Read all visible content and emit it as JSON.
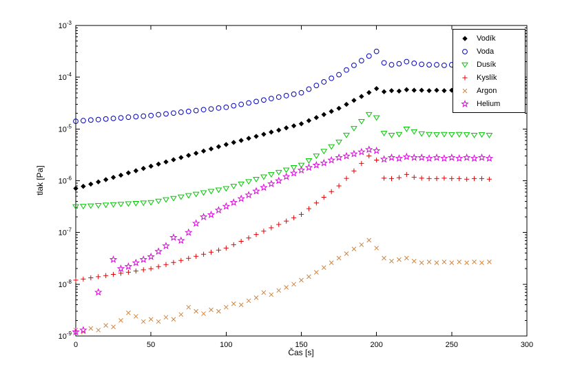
{
  "chart_data": {
    "type": "scatter",
    "title": "",
    "xlabel": "Čas [s]",
    "ylabel": "tlak [Pa]",
    "xlim": [
      0,
      300
    ],
    "ylog": true,
    "ylim_exp": [
      -9,
      -3
    ],
    "xticks": [
      0,
      50,
      100,
      150,
      200,
      250,
      300
    ],
    "ytick_exponents": [
      -9,
      -8,
      -7,
      -6,
      -5,
      -4,
      -3
    ],
    "grid": false,
    "legend_position": "top-right",
    "x": [
      0,
      5,
      10,
      15,
      20,
      25,
      30,
      35,
      40,
      45,
      50,
      55,
      60,
      65,
      70,
      75,
      80,
      85,
      90,
      95,
      100,
      105,
      110,
      115,
      120,
      125,
      130,
      135,
      140,
      145,
      150,
      155,
      160,
      165,
      170,
      175,
      180,
      185,
      190,
      195,
      200,
      205,
      210,
      215,
      220,
      225,
      230,
      235,
      240,
      245,
      250,
      255,
      260,
      265,
      270,
      275
    ],
    "series": [
      {
        "name": "Vodík",
        "marker": "diamond",
        "color": "#000000",
        "filled": true,
        "values": [
          7.1e-07,
          7.8e-07,
          8.6e-07,
          9.5e-07,
          1.05e-06,
          1.16e-06,
          1.28e-06,
          1.42e-06,
          1.56e-06,
          1.73e-06,
          1.91e-06,
          2.1e-06,
          2.31e-06,
          2.55e-06,
          2.81e-06,
          3.09e-06,
          3.4e-06,
          3.75e-06,
          4.13e-06,
          4.55e-06,
          5.01e-06,
          5.5e-06,
          6e-06,
          6.6e-06,
          7.2e-06,
          7.9e-06,
          8.7e-06,
          9.5e-06,
          1.05e-05,
          1.15e-05,
          1.26e-05,
          1.45e-05,
          1.66e-05,
          1.9e-05,
          2.19e-05,
          2.51e-05,
          2.99e-05,
          3.57e-05,
          4.25e-05,
          5.06e-05,
          6.03e-05,
          5.25e-05,
          5.5e-05,
          5.4e-05,
          5.75e-05,
          5.6e-05,
          5.6e-05,
          5.5e-05,
          5.6e-05,
          5.5e-05,
          5.6e-05,
          5.5e-05,
          5.6e-05,
          5.5e-05,
          5.6e-05,
          5.5e-05
        ]
      },
      {
        "name": "Voda",
        "marker": "circle",
        "color": "#0000bf",
        "filled": false,
        "values": [
          1.41e-05,
          1.45e-05,
          1.49e-05,
          1.52e-05,
          1.56e-05,
          1.6e-05,
          1.64e-05,
          1.69e-05,
          1.73e-05,
          1.77e-05,
          1.82e-05,
          1.89e-05,
          1.96e-05,
          2.03e-05,
          2.11e-05,
          2.19e-05,
          2.27e-05,
          2.36e-05,
          2.44e-05,
          2.54e-05,
          2.63e-05,
          2.81e-05,
          2.99e-05,
          3.19e-05,
          3.4e-05,
          3.63e-05,
          3.87e-05,
          4.13e-05,
          4.41e-05,
          4.7e-05,
          5.01e-05,
          5.89e-05,
          6.92e-05,
          8.13e-05,
          9.55e-05,
          0.000112,
          0.000138,
          0.00017,
          0.000209,
          0.000257,
          0.000316,
          0.00019,
          0.000174,
          0.000182,
          0.0002,
          0.000186,
          0.000178,
          0.000174,
          0.000174,
          0.00017,
          0.000174,
          0.00017,
          0.00017,
          0.000166,
          0.00017,
          0.000166
        ]
      },
      {
        "name": "Dusík",
        "marker": "triangle-down",
        "color": "#00c800",
        "filled": false,
        "values": [
          3.16e-07,
          3.22e-07,
          3.28e-07,
          3.34e-07,
          3.4e-07,
          3.47e-07,
          3.53e-07,
          3.6e-07,
          3.66e-07,
          3.73e-07,
          3.8e-07,
          4.05e-07,
          4.31e-07,
          4.58e-07,
          4.88e-07,
          5.19e-07,
          5.52e-07,
          5.88e-07,
          6.25e-07,
          6.65e-07,
          7.08e-07,
          7.85e-07,
          8.71e-07,
          9.66e-07,
          1.07e-06,
          1.19e-06,
          1.32e-06,
          1.46e-06,
          1.62e-06,
          1.8e-06,
          2e-06,
          2.45e-06,
          3.02e-06,
          3.72e-06,
          4.57e-06,
          5.62e-06,
          7.62e-06,
          1.03e-05,
          1.4e-05,
          1.91e-05,
          1.66e-05,
          8.3e-06,
          7.6e-06,
          7.9e-06,
          1e-05,
          8.9e-06,
          8.1e-06,
          7.9e-06,
          7.8e-06,
          7.9e-06,
          7.8e-06,
          7.9e-06,
          7.8e-06,
          7.6e-06,
          7.8e-06,
          7.6e-06
        ]
      },
      {
        "name": "Kyslík",
        "marker": "plus",
        "color": "#e60000",
        "filled": false,
        "values": [
          1.2e-08,
          1.26e-08,
          1.33e-08,
          1.4e-08,
          1.47e-08,
          1.55e-08,
          1.63e-08,
          1.71e-08,
          1.8e-08,
          1.9e-08,
          2e-08,
          2.19e-08,
          2.4e-08,
          2.63e-08,
          2.88e-08,
          3.16e-08,
          3.47e-08,
          3.8e-08,
          4.17e-08,
          4.57e-08,
          5.01e-08,
          5.82e-08,
          6.76e-08,
          7.85e-08,
          9.12e-08,
          1.06e-07,
          1.23e-07,
          1.43e-07,
          1.66e-07,
          1.93e-07,
          2.24e-07,
          2.88e-07,
          3.72e-07,
          4.79e-07,
          6.17e-07,
          7.94e-07,
          1.11e-06,
          1.55e-06,
          2.16e-06,
          3.02e-06,
          2.51e-06,
          1.12e-06,
          1.1e-06,
          1.15e-06,
          1.32e-06,
          1.17e-06,
          1.12e-06,
          1.1e-06,
          1.1e-06,
          1.12e-06,
          1.1e-06,
          1.1e-06,
          1.07e-06,
          1.1e-06,
          1.1e-06,
          1.07e-06
        ]
      },
      {
        "name": "Argon",
        "marker": "x",
        "color": "#cc8544",
        "filled": false,
        "values": [
          1.3e-09,
          1.2e-09,
          1.4e-09,
          1.3e-09,
          1.6e-09,
          1.5e-09,
          2e-09,
          2.8e-09,
          2.4e-09,
          1.9e-09,
          2.1e-09,
          1.9e-09,
          2.3e-09,
          2.1e-09,
          2.6e-09,
          3.6e-09,
          3e-09,
          2.7e-09,
          3.2e-09,
          3e-09,
          3.6e-09,
          4.2e-09,
          4e-09,
          4.8e-09,
          5.5e-09,
          6.9e-09,
          6.3e-09,
          7.6e-09,
          8.7e-09,
          1e-08,
          1.2e-08,
          1.4e-08,
          1.7e-08,
          2.1e-08,
          2.6e-08,
          3.2e-08,
          3.9e-08,
          4.8e-08,
          5.8e-08,
          7.1e-08,
          5e-08,
          3.2e-08,
          2.8e-08,
          3e-08,
          3.2e-08,
          2.8e-08,
          2.6e-08,
          2.7e-08,
          2.6e-08,
          2.7e-08,
          2.6e-08,
          2.7e-08,
          2.6e-08,
          2.7e-08,
          2.6e-08,
          2.7e-08
        ]
      },
      {
        "name": "Helium",
        "marker": "star",
        "color": "#e000e0",
        "filled": false,
        "values": [
          1.2e-09,
          1.3e-09,
          null,
          7e-09,
          null,
          3e-08,
          2e-08,
          2.2e-08,
          2.6e-08,
          3e-08,
          3.4e-08,
          4.3e-08,
          5.5e-08,
          8e-08,
          7e-08,
          1e-07,
          1.5e-07,
          2e-07,
          2.2e-07,
          2.7e-07,
          3.2e-07,
          3.8e-07,
          4.5e-07,
          5.3e-07,
          6.3e-07,
          7.4e-07,
          8.7e-07,
          1e-06,
          1.2e-06,
          1.4e-06,
          1.6e-06,
          1.8e-06,
          2e-06,
          2.2e-06,
          2.5e-06,
          2.8e-06,
          3e-06,
          3.3e-06,
          3.6e-06,
          4e-06,
          3.8e-06,
          2.6e-06,
          2.8e-06,
          2.7e-06,
          2.9e-06,
          2.8e-06,
          2.8e-06,
          2.7e-06,
          2.8e-06,
          2.7e-06,
          2.8e-06,
          2.7e-06,
          2.8e-06,
          2.7e-06,
          2.8e-06,
          2.7e-06
        ]
      }
    ]
  }
}
